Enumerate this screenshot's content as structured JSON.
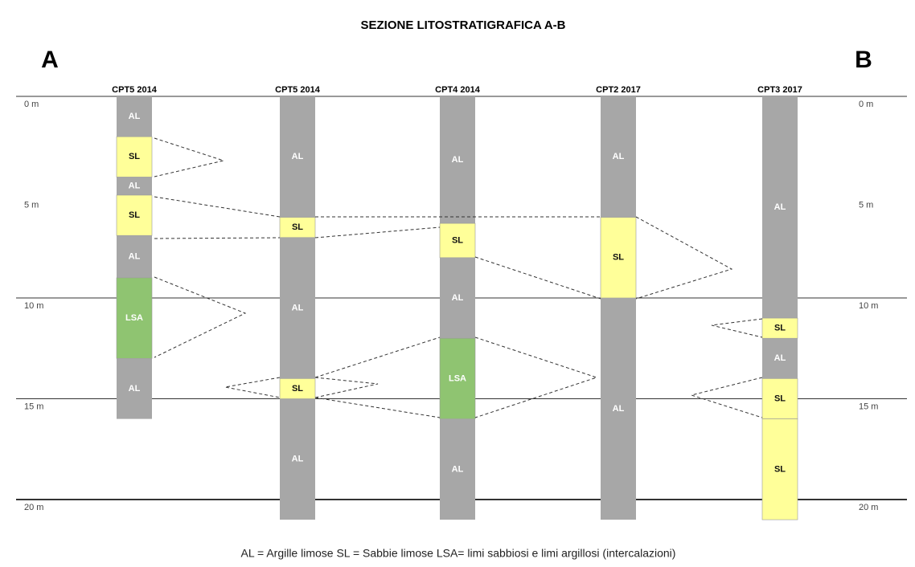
{
  "title": "SEZIONE LITOSTRATIGRAFICA A-B",
  "ends": {
    "left": "A",
    "right": "B"
  },
  "depth_ticks": [
    {
      "value": 0,
      "label": "0 m"
    },
    {
      "value": 5,
      "label": "5 m"
    },
    {
      "value": 10,
      "label": "10 m"
    },
    {
      "value": 15,
      "label": "15 m"
    },
    {
      "value": 20,
      "label": "20 m"
    }
  ],
  "depth_lines": [
    0,
    10,
    15,
    20
  ],
  "colors": {
    "AL": "#a7a7a7",
    "SL": "#ffff99",
    "LSA": "#8fc471"
  },
  "columns": [
    {
      "name": "CPT5 2014",
      "layers": [
        {
          "label": "AL",
          "from": 0,
          "to": 2
        },
        {
          "label": "SL",
          "from": 2,
          "to": 4
        },
        {
          "label": "AL",
          "from": 4,
          "to": 4.9
        },
        {
          "label": "SL",
          "from": 4.9,
          "to": 6.9
        },
        {
          "label": "AL",
          "from": 6.9,
          "to": 9
        },
        {
          "label": "LSA",
          "from": 9,
          "to": 13
        },
        {
          "label": "AL",
          "from": 13,
          "to": 16
        }
      ]
    },
    {
      "name": "CPT5 2014",
      "layers": [
        {
          "label": "AL",
          "from": 0,
          "to": 6
        },
        {
          "label": "SL",
          "from": 6,
          "to": 7
        },
        {
          "label": "AL",
          "from": 7,
          "to": 14
        },
        {
          "label": "SL",
          "from": 14,
          "to": 15
        },
        {
          "label": "AL",
          "from": 15,
          "to": 21
        }
      ]
    },
    {
      "name": "CPT4 2014",
      "layers": [
        {
          "label": "AL",
          "from": 0,
          "to": 6.3
        },
        {
          "label": "SL",
          "from": 6.3,
          "to": 8
        },
        {
          "label": "AL",
          "from": 8,
          "to": 12
        },
        {
          "label": "LSA",
          "from": 12,
          "to": 16
        },
        {
          "label": "AL",
          "from": 16,
          "to": 21
        }
      ]
    },
    {
      "name": "CPT2 2017",
      "layers": [
        {
          "label": "AL",
          "from": 0,
          "to": 6
        },
        {
          "label": "SL",
          "from": 6,
          "to": 10
        },
        {
          "label": "AL",
          "from": 10,
          "to": 21
        }
      ]
    },
    {
      "name": "CPT3 2017",
      "layers": [
        {
          "label": "AL",
          "from": 0,
          "to": 11
        },
        {
          "label": "SL",
          "from": 11,
          "to": 12
        },
        {
          "label": "AL",
          "from": 12,
          "to": 14
        },
        {
          "label": "SL",
          "from": 14,
          "to": 16
        },
        {
          "label": "SL",
          "from": 16,
          "to": 21
        }
      ]
    }
  ],
  "legend": "AL = Argille limose    SL = Sabbie limose  LSA= limi sabbiosi e limi argillosi (intercalazioni)"
}
